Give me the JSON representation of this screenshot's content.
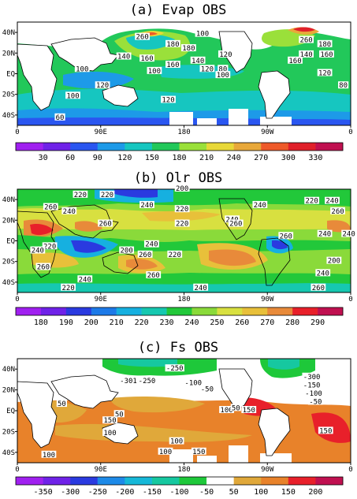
{
  "chart_data": [
    {
      "type": "heatmap",
      "title": "(a) Evap OBS",
      "x_ticks": [
        "0",
        "90E",
        "180",
        "90W",
        "0"
      ],
      "y_ticks": [
        "40N",
        "20N",
        "EQ",
        "20S",
        "40S"
      ],
      "colorbar": {
        "ticks": [
          "30",
          "60",
          "90",
          "120",
          "150",
          "180",
          "210",
          "240",
          "270",
          "300",
          "330"
        ],
        "colors": [
          "#a020f0",
          "#6f22e8",
          "#2a56f0",
          "#1d9ae8",
          "#16c6c0",
          "#22c85a",
          "#9ae03a",
          "#e8d838",
          "#e8a83a",
          "#ee5a2a",
          "#e0202a",
          "#c01050"
        ]
      },
      "contour_labels": [
        {
          "text": "260",
          "lon": 135,
          "lat": 35
        },
        {
          "text": "100",
          "lon": 200,
          "lat": 38
        },
        {
          "text": "180",
          "lon": 168,
          "lat": 28
        },
        {
          "text": "260",
          "lon": 312,
          "lat": 32
        },
        {
          "text": "140",
          "lon": 312,
          "lat": 18
        },
        {
          "text": "160",
          "lon": 334,
          "lat": 18
        },
        {
          "text": "180",
          "lon": 332,
          "lat": 28
        },
        {
          "text": "160",
          "lon": 300,
          "lat": 12
        },
        {
          "text": "140",
          "lon": 115,
          "lat": 16
        },
        {
          "text": "160",
          "lon": 140,
          "lat": 14
        },
        {
          "text": "120",
          "lon": 225,
          "lat": 18
        },
        {
          "text": "140",
          "lon": 195,
          "lat": 12
        },
        {
          "text": "180",
          "lon": 185,
          "lat": 24
        },
        {
          "text": "160",
          "lon": 168,
          "lat": 8
        },
        {
          "text": "100",
          "lon": 70,
          "lat": 4
        },
        {
          "text": "100",
          "lon": 148,
          "lat": 2
        },
        {
          "text": "120",
          "lon": 205,
          "lat": 4
        },
        {
          "text": "80",
          "lon": 222,
          "lat": 4
        },
        {
          "text": "100",
          "lon": 222,
          "lat": -2
        },
        {
          "text": "120",
          "lon": 332,
          "lat": 0
        },
        {
          "text": "80",
          "lon": 352,
          "lat": -12
        },
        {
          "text": "120",
          "lon": 92,
          "lat": -12
        },
        {
          "text": "100",
          "lon": 60,
          "lat": -22
        },
        {
          "text": "120",
          "lon": 163,
          "lat": -26
        },
        {
          "text": "60",
          "lon": 46,
          "lat": -43
        }
      ]
    },
    {
      "type": "heatmap",
      "title": "(b) Olr OBS",
      "x_ticks": [
        "0",
        "90E",
        "180",
        "90W",
        "0"
      ],
      "y_ticks": [
        "40N",
        "20N",
        "EQ",
        "20S",
        "40S"
      ],
      "colorbar": {
        "ticks": [
          "180",
          "190",
          "200",
          "210",
          "220",
          "230",
          "240",
          "250",
          "260",
          "270",
          "280",
          "290"
        ],
        "colors": [
          "#a020f0",
          "#6f22e8",
          "#2a3ae0",
          "#1d7ae8",
          "#16b0e0",
          "#16c8b0",
          "#22c83a",
          "#8ada3a",
          "#d8e040",
          "#e8c03a",
          "#e88a3a",
          "#e8202a",
          "#c01050"
        ]
      },
      "contour_labels": [
        {
          "text": "220",
          "lon": 68,
          "lat": 44
        },
        {
          "text": "220",
          "lon": 97,
          "lat": 44
        },
        {
          "text": "200",
          "lon": 178,
          "lat": 50
        },
        {
          "text": "260",
          "lon": 36,
          "lat": 32
        },
        {
          "text": "240",
          "lon": 56,
          "lat": 28
        },
        {
          "text": "240",
          "lon": 140,
          "lat": 34
        },
        {
          "text": "220",
          "lon": 178,
          "lat": 30
        },
        {
          "text": "240",
          "lon": 262,
          "lat": 34
        },
        {
          "text": "220",
          "lon": 318,
          "lat": 38
        },
        {
          "text": "240",
          "lon": 340,
          "lat": 38
        },
        {
          "text": "260",
          "lon": 346,
          "lat": 28
        },
        {
          "text": "260",
          "lon": 95,
          "lat": 16
        },
        {
          "text": "220",
          "lon": 178,
          "lat": 16
        },
        {
          "text": "240",
          "lon": 232,
          "lat": 20
        },
        {
          "text": "260",
          "lon": 236,
          "lat": 16
        },
        {
          "text": "260",
          "lon": 290,
          "lat": 4
        },
        {
          "text": "240",
          "lon": 332,
          "lat": 6
        },
        {
          "text": "240",
          "lon": 358,
          "lat": 6
        },
        {
          "text": "260",
          "lon": 378,
          "lat": 4
        },
        {
          "text": "220",
          "lon": 35,
          "lat": -6
        },
        {
          "text": "240",
          "lon": 22,
          "lat": -10
        },
        {
          "text": "200",
          "lon": 118,
          "lat": -10
        },
        {
          "text": "240",
          "lon": 145,
          "lat": -4
        },
        {
          "text": "260",
          "lon": 138,
          "lat": -14
        },
        {
          "text": "220",
          "lon": 170,
          "lat": -14
        },
        {
          "text": "200",
          "lon": 342,
          "lat": -20
        },
        {
          "text": "240",
          "lon": 330,
          "lat": -32
        },
        {
          "text": "260",
          "lon": 28,
          "lat": -26
        },
        {
          "text": "260",
          "lon": 147,
          "lat": -34
        },
        {
          "text": "240",
          "lon": 73,
          "lat": -38
        },
        {
          "text": "220",
          "lon": 55,
          "lat": -46
        },
        {
          "text": "240",
          "lon": 198,
          "lat": -46
        },
        {
          "text": "260",
          "lon": 325,
          "lat": -46
        }
      ]
    },
    {
      "type": "heatmap",
      "title": "(c) Fs OBS",
      "x_ticks": [
        "0",
        "90E",
        "180",
        "90W",
        "0"
      ],
      "y_ticks": [
        "40N",
        "20N",
        "EQ",
        "20S",
        "40S"
      ],
      "colorbar": {
        "ticks": [
          "-350",
          "-300",
          "-250",
          "-200",
          "-150",
          "-100",
          "-50",
          "50",
          "100",
          "150",
          "200"
        ],
        "colors": [
          "#a020f0",
          "#6f22e8",
          "#2a3ae0",
          "#1d8ae8",
          "#16b8d8",
          "#16c8a0",
          "#1ec83a",
          "#ffffff",
          "#e0a83a",
          "#e8822a",
          "#e8202a",
          "#c01050"
        ]
      },
      "contour_labels": [
        {
          "text": "-250",
          "lon": 170,
          "lat": 40
        },
        {
          "text": "-300",
          "lon": 318,
          "lat": 32
        },
        {
          "text": "-301",
          "lon": 120,
          "lat": 28
        },
        {
          "text": "-250",
          "lon": 140,
          "lat": 28
        },
        {
          "text": "-100",
          "lon": 190,
          "lat": 26
        },
        {
          "text": "-50",
          "lon": 205,
          "lat": 20
        },
        {
          "text": "-150",
          "lon": 318,
          "lat": 24
        },
        {
          "text": "-100",
          "lon": 320,
          "lat": 16
        },
        {
          "text": "-50",
          "lon": 322,
          "lat": 8
        },
        {
          "text": "50",
          "lon": 48,
          "lat": 6
        },
        {
          "text": "100",
          "lon": 226,
          "lat": 0
        },
        {
          "text": "50",
          "lon": 236,
          "lat": 2
        },
        {
          "text": "150",
          "lon": 250,
          "lat": 0
        },
        {
          "text": "50",
          "lon": 110,
          "lat": -4
        },
        {
          "text": "150",
          "lon": 100,
          "lat": -10
        },
        {
          "text": "100",
          "lon": 100,
          "lat": -22
        },
        {
          "text": "150",
          "lon": 333,
          "lat": -20
        },
        {
          "text": "100",
          "lon": 172,
          "lat": -30
        },
        {
          "text": "100",
          "lon": 160,
          "lat": -40
        },
        {
          "text": "150",
          "lon": 196,
          "lat": -40
        },
        {
          "text": "100",
          "lon": 34,
          "lat": -43
        }
      ]
    }
  ]
}
